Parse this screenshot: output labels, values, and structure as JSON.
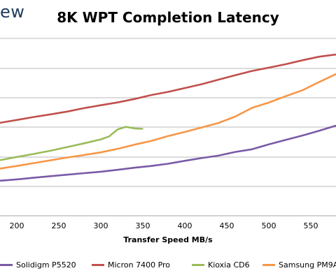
{
  "brand": "ew",
  "chart_data": {
    "type": "line",
    "title": "8K WPT Completion Latency",
    "xlabel": "Transfer Speed MB/s",
    "ylabel": "",
    "x_ticks": [
      200,
      250,
      300,
      350,
      400,
      450,
      500,
      550
    ],
    "xlim": [
      180,
      580
    ],
    "grid": true,
    "legend_position": "bottom",
    "series": [
      {
        "name": "Solidigm P5520",
        "color": "#7a5aa6",
        "x": [
          180,
          200,
          220,
          240,
          260,
          280,
          300,
          320,
          340,
          360,
          380,
          400,
          420,
          440,
          460,
          480,
          500,
          520,
          540,
          560,
          580
        ],
        "y": [
          0.237,
          0.246,
          0.257,
          0.268,
          0.278,
          0.288,
          0.298,
          0.311,
          0.325,
          0.337,
          0.352,
          0.372,
          0.39,
          0.407,
          0.432,
          0.45,
          0.483,
          0.513,
          0.543,
          0.575,
          0.61
        ]
      },
      {
        "name": "Micron 7400 Pro",
        "color": "#c0504d",
        "x": [
          180,
          200,
          220,
          240,
          260,
          280,
          300,
          320,
          340,
          360,
          380,
          400,
          420,
          440,
          460,
          480,
          500,
          520,
          540,
          560,
          580
        ],
        "y": [
          0.629,
          0.648,
          0.668,
          0.686,
          0.705,
          0.728,
          0.748,
          0.767,
          0.79,
          0.817,
          0.838,
          0.864,
          0.89,
          0.921,
          0.951,
          0.98,
          1.002,
          1.025,
          1.052,
          1.076,
          1.091
        ]
      },
      {
        "name": "Kioxia CD6",
        "color": "#9bbb59",
        "x": [
          180,
          200,
          220,
          240,
          260,
          280,
          300,
          310,
          320,
          330,
          340,
          350
        ],
        "y": [
          0.376,
          0.398,
          0.418,
          0.44,
          0.465,
          0.49,
          0.517,
          0.537,
          0.584,
          0.602,
          0.591,
          0.588
        ]
      },
      {
        "name": "Samsung PM9A",
        "color": "#f79646",
        "x": [
          180,
          200,
          220,
          240,
          260,
          280,
          300,
          320,
          340,
          360,
          380,
          400,
          420,
          440,
          460,
          480,
          500,
          520,
          540,
          560,
          580
        ],
        "y": [
          0.319,
          0.337,
          0.356,
          0.375,
          0.394,
          0.411,
          0.429,
          0.453,
          0.481,
          0.506,
          0.539,
          0.567,
          0.597,
          0.628,
          0.671,
          0.73,
          0.766,
          0.809,
          0.849,
          0.905,
          0.959
        ]
      }
    ]
  }
}
